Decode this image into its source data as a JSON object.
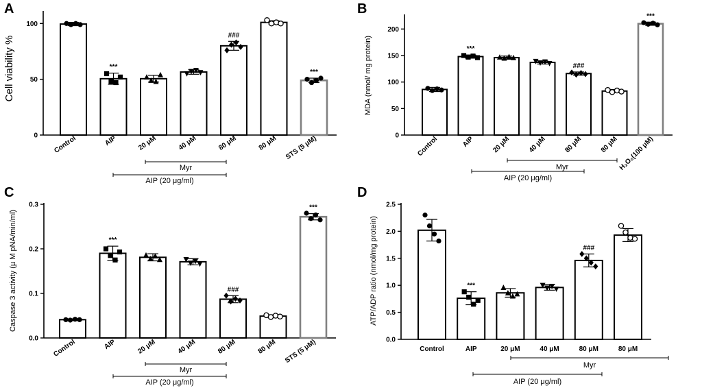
{
  "figure": {
    "description_free": true
  },
  "colors": {
    "axis": "#000000",
    "bar_default": "#000000",
    "bar_control_grey": "#808080",
    "point_fill": "#000000",
    "point_open": "#ffffff"
  },
  "chart_data": [
    {
      "panel": "A",
      "type": "bar",
      "ylabel": "Cell viability %",
      "ylim": [
        0,
        110
      ],
      "yticks": [
        0,
        50,
        100
      ],
      "categories": [
        "Control",
        "AIP",
        "20 μM",
        "40 μM",
        "80 μM",
        "80 μM",
        "STS (5 μM)"
      ],
      "values": [
        99.5,
        50.5,
        50.5,
        56.5,
        80,
        101,
        49
      ],
      "errors": [
        1.5,
        5,
        3,
        2,
        4,
        1.5,
        2
      ],
      "annotations": [
        "",
        "***",
        "",
        "",
        "###",
        "",
        "***"
      ],
      "bar_colors": [
        "#000000",
        "#000000",
        "#000000",
        "#000000",
        "#000000",
        "#000000",
        "#808080"
      ],
      "point_styles": [
        "filled",
        "filled-square",
        "filled-triangle",
        "filled-down",
        "filled-diamond",
        "open",
        "filled"
      ],
      "points": [
        [
          100,
          99,
          100,
          99
        ],
        [
          55,
          48,
          47,
          52
        ],
        [
          52,
          49,
          48,
          54
        ],
        [
          55,
          57,
          58,
          56
        ],
        [
          76,
          81,
          83,
          79
        ],
        [
          103,
          100,
          101,
          100
        ],
        [
          50,
          47,
          49,
          51
        ]
      ],
      "groups": {
        "myr_label": "Myr",
        "aip_label": "AIP (20 μg/ml)"
      }
    },
    {
      "panel": "B",
      "type": "bar",
      "ylabel": "MDA (nmol/ mg protein)",
      "ylim": [
        0,
        225
      ],
      "yticks": [
        0,
        50,
        100,
        150,
        200
      ],
      "categories": [
        "Control",
        "AIP",
        "20 μM",
        "40 μM",
        "80 μM",
        "80 μM",
        "H₂O₂(100 μM)"
      ],
      "values": [
        86,
        148,
        146,
        137,
        116,
        83,
        210
      ],
      "errors": [
        4,
        3,
        3,
        3,
        3,
        3,
        3
      ],
      "annotations": [
        "",
        "***",
        "",
        "",
        "###",
        "",
        "***"
      ],
      "bar_colors": [
        "#000000",
        "#000000",
        "#000000",
        "#000000",
        "#000000",
        "#000000",
        "#808080"
      ],
      "point_styles": [
        "filled",
        "filled-square",
        "filled-triangle",
        "filled-down",
        "filled-diamond",
        "open",
        "filled"
      ],
      "points": [
        [
          88,
          84,
          87,
          85
        ],
        [
          150,
          147,
          149,
          146
        ],
        [
          147,
          145,
          148,
          146
        ],
        [
          139,
          136,
          138,
          135
        ],
        [
          118,
          114,
          117,
          115
        ],
        [
          85,
          81,
          84,
          82
        ],
        [
          212,
          209,
          211,
          208
        ]
      ],
      "groups": {
        "myr_label": "Myr",
        "aip_label": "AIP (20 μg/ml)"
      }
    },
    {
      "panel": "C",
      "type": "bar",
      "ylabel": "Caspase 3 activity (µ M pNA/min/ml)",
      "ylim": [
        0,
        0.3
      ],
      "yticks": [
        0.0,
        0.1,
        0.2,
        0.3
      ],
      "ytick_labels": [
        "0.0",
        "0.1",
        "0.2",
        "0.3"
      ],
      "categories": [
        "Control",
        "AIP",
        "20 μM",
        "40 μM",
        "80 μM",
        "80 μM",
        "STS (5 μM)"
      ],
      "values": [
        0.041,
        0.19,
        0.181,
        0.171,
        0.087,
        0.049,
        0.272
      ],
      "errors": [
        0.002,
        0.016,
        0.008,
        0.007,
        0.008,
        0.003,
        0.007
      ],
      "annotations": [
        "",
        "***",
        "",
        "",
        "###",
        "",
        "***"
      ],
      "bar_colors": [
        "#000000",
        "#000000",
        "#000000",
        "#000000",
        "#000000",
        "#000000",
        "#808080"
      ],
      "point_styles": [
        "filled",
        "filled-square",
        "filled-triangle",
        "filled-down",
        "filled-diamond",
        "open",
        "filled"
      ],
      "points": [
        [
          0.041,
          0.04,
          0.042,
          0.041
        ],
        [
          0.2,
          0.185,
          0.175,
          0.193
        ],
        [
          0.186,
          0.178,
          0.184,
          0.176
        ],
        [
          0.176,
          0.168,
          0.172,
          0.166
        ],
        [
          0.095,
          0.082,
          0.088,
          0.084
        ],
        [
          0.051,
          0.047,
          0.05,
          0.048
        ],
        [
          0.28,
          0.268,
          0.276,
          0.265
        ]
      ],
      "groups": {
        "myr_label": "Myr",
        "aip_label": "AIP (20 μg/ml)"
      }
    },
    {
      "panel": "D",
      "type": "bar",
      "ylabel": "ATP/ADP ratio (nmol/mg protein)",
      "ylim": [
        0,
        2.5
      ],
      "yticks": [
        0.0,
        0.5,
        1.0,
        1.5,
        2.0,
        2.5
      ],
      "ytick_labels": [
        "0.0",
        "0.5",
        "1.0",
        "1.5",
        "2.0",
        "2.5"
      ],
      "categories": [
        "Control",
        "AIP",
        "20 μM",
        "40 μM",
        "80 μM",
        "80 μM"
      ],
      "values": [
        2.02,
        0.76,
        0.86,
        0.96,
        1.46,
        1.93
      ],
      "errors": [
        0.2,
        0.12,
        0.08,
        0.05,
        0.12,
        0.12
      ],
      "annotations": [
        "",
        "***",
        "",
        "",
        "###",
        ""
      ],
      "bar_colors": [
        "#000000",
        "#000000",
        "#000000",
        "#000000",
        "#000000",
        "#000000"
      ],
      "point_styles": [
        "filled",
        "filled-square",
        "filled-triangle",
        "filled-down",
        "filled-diamond",
        "open"
      ],
      "points": [
        [
          2.3,
          2.1,
          1.95,
          1.82
        ],
        [
          0.88,
          0.78,
          0.65,
          0.72
        ],
        [
          0.96,
          0.86,
          0.8,
          0.84
        ],
        [
          1.0,
          0.95,
          0.98,
          0.93
        ],
        [
          1.58,
          1.5,
          1.42,
          1.35
        ],
        [
          2.1,
          1.98,
          1.88,
          1.86
        ]
      ],
      "groups": {
        "myr_label": "Myr",
        "aip_label": "AIP (20 μg/ml)"
      }
    }
  ]
}
